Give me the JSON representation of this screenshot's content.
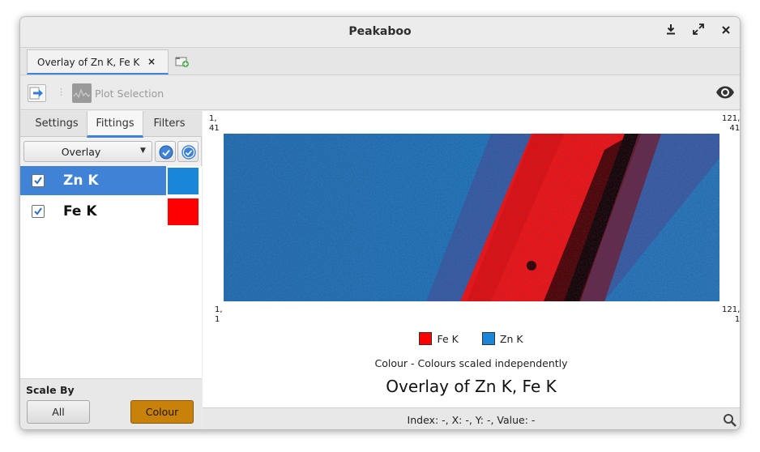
{
  "window": {
    "title": "Peakaboo"
  },
  "window_controls": [
    "download-icon",
    "maximize-icon",
    "close-icon"
  ],
  "document_tab": {
    "label": "Overlay of Zn K, Fe K",
    "close": "×"
  },
  "toolbar": {
    "plot_selection_label": "Plot Selection",
    "separator": "⋮"
  },
  "sidebar": {
    "tabs": [
      {
        "label": "Settings",
        "active": false
      },
      {
        "label": "Fittings",
        "active": true
      },
      {
        "label": "Filters",
        "active": false
      }
    ],
    "mode": {
      "selected": "Overlay"
    },
    "fittings": [
      {
        "name": "Zn K",
        "checked": true,
        "selected": true,
        "color": "#1a86d9"
      },
      {
        "name": "Fe K",
        "checked": true,
        "selected": false,
        "color": "#ff0000"
      }
    ],
    "scale_by": {
      "label": "Scale By",
      "buttons": [
        {
          "label": "All",
          "active": false
        },
        {
          "label": "Colour",
          "active": true
        }
      ]
    }
  },
  "map": {
    "corners": {
      "top_left": "1,\n41",
      "top_right": "121,\n41",
      "bottom_left": "1,\n1",
      "bottom_right": "121,\n1"
    },
    "legend": [
      {
        "label": "Fe K",
        "color": "#ff0000"
      },
      {
        "label": "Zn K",
        "color": "#1a86d9"
      }
    ],
    "scale_description": "Colour - Colours scaled independently",
    "title": "Overlay of Zn K, Fe K"
  },
  "status": {
    "text": "Index: -, X: -, Y: -, Value: -"
  },
  "colors": {
    "accent": "#3f82d6",
    "scale_active": "#c8820a"
  }
}
